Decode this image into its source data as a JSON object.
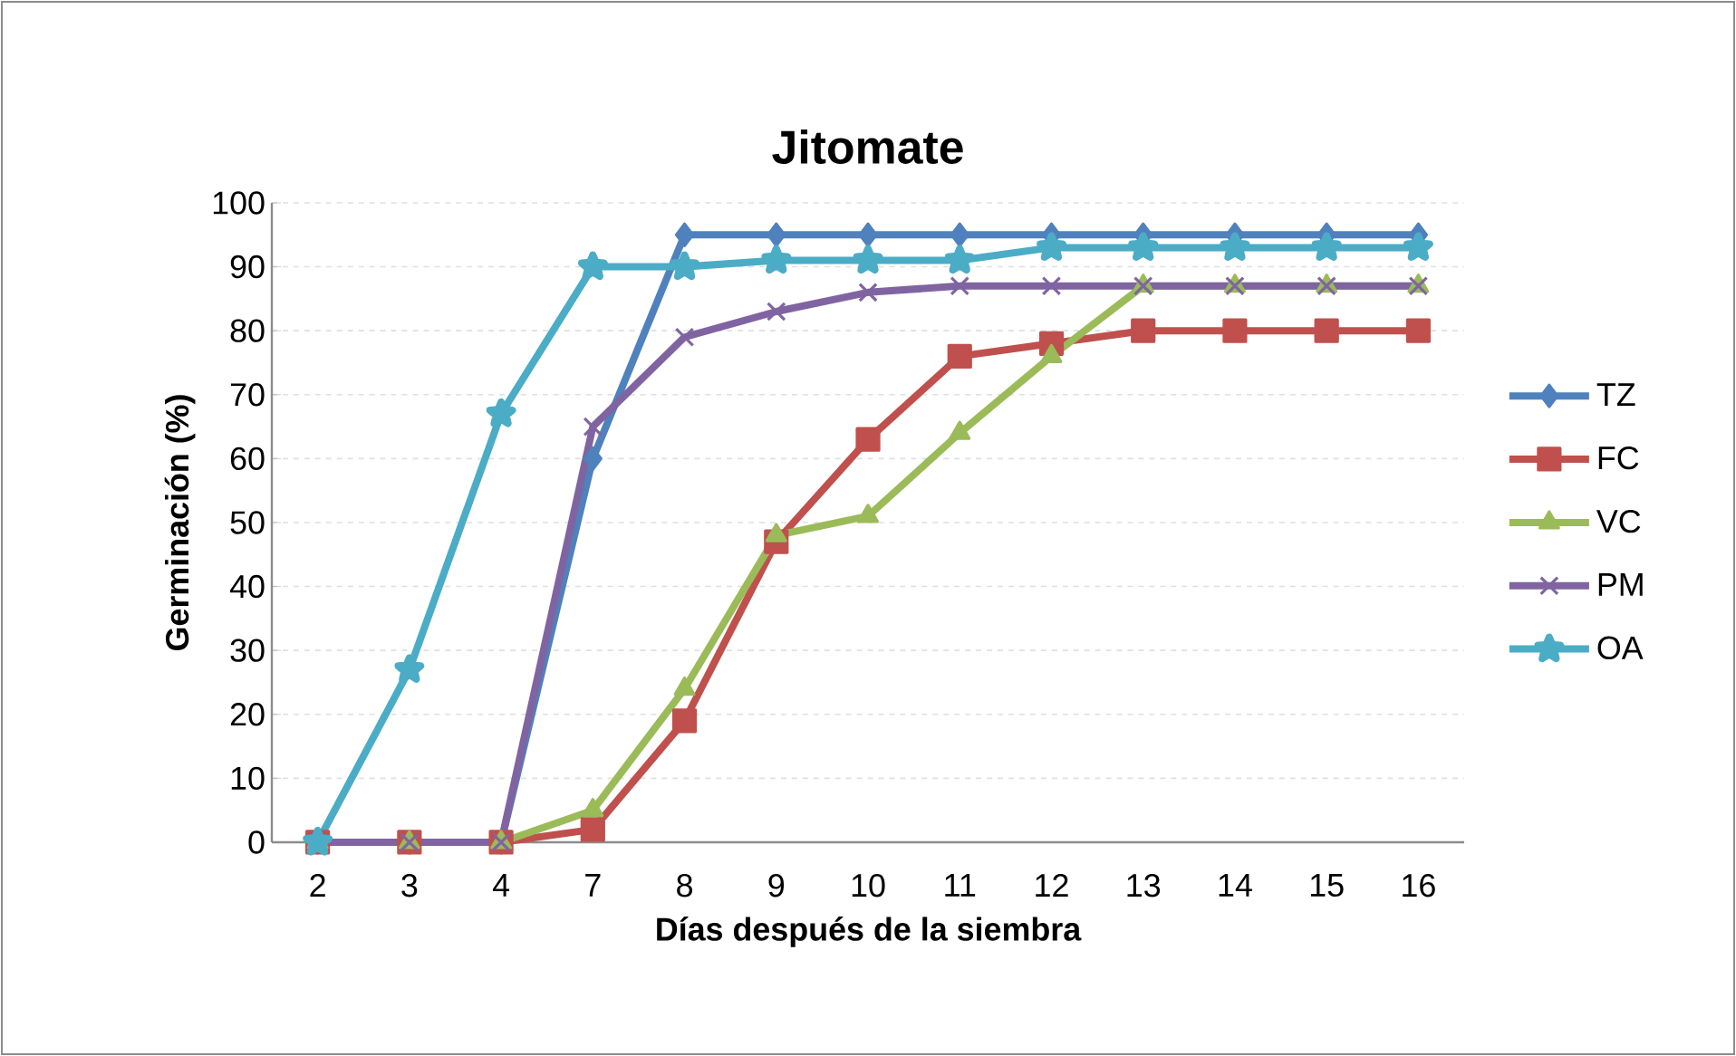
{
  "chart_data": {
    "type": "line",
    "title": "Jitomate",
    "xlabel": "Días después de la siembra",
    "ylabel": "Germinación (%)",
    "categories": [
      "2",
      "3",
      "4",
      "7",
      "8",
      "9",
      "10",
      "11",
      "12",
      "13",
      "14",
      "15",
      "16"
    ],
    "series": [
      {
        "name": "TZ",
        "color": "#4f81bd",
        "marker": "diamond",
        "values": [
          0,
          0,
          0,
          60,
          95,
          95,
          95,
          95,
          95,
          95,
          95,
          95,
          95
        ]
      },
      {
        "name": "FC",
        "color": "#c0504d",
        "marker": "square",
        "values": [
          0,
          0,
          0,
          2,
          19,
          47,
          63,
          76,
          78,
          80,
          80,
          80,
          80
        ]
      },
      {
        "name": "VC",
        "color": "#9bbb59",
        "marker": "triangle",
        "values": [
          0,
          0,
          0,
          5,
          24,
          48,
          51,
          64,
          76,
          87,
          87,
          87,
          87
        ]
      },
      {
        "name": "PM",
        "color": "#8064a2",
        "marker": "cross",
        "values": [
          0,
          0,
          0,
          65,
          79,
          83,
          86,
          87,
          87,
          87,
          87,
          87,
          87
        ]
      },
      {
        "name": "OA",
        "color": "#4bacc6",
        "marker": "star",
        "values": [
          0,
          27,
          67,
          90,
          90,
          91,
          91,
          91,
          93,
          93,
          93,
          93,
          93
        ]
      }
    ],
    "ylim": [
      0,
      100
    ],
    "yticks": [
      0,
      10,
      20,
      30,
      40,
      50,
      60,
      70,
      80,
      90,
      100
    ],
    "grid": "y",
    "legend": "right",
    "line_style": "solid"
  }
}
